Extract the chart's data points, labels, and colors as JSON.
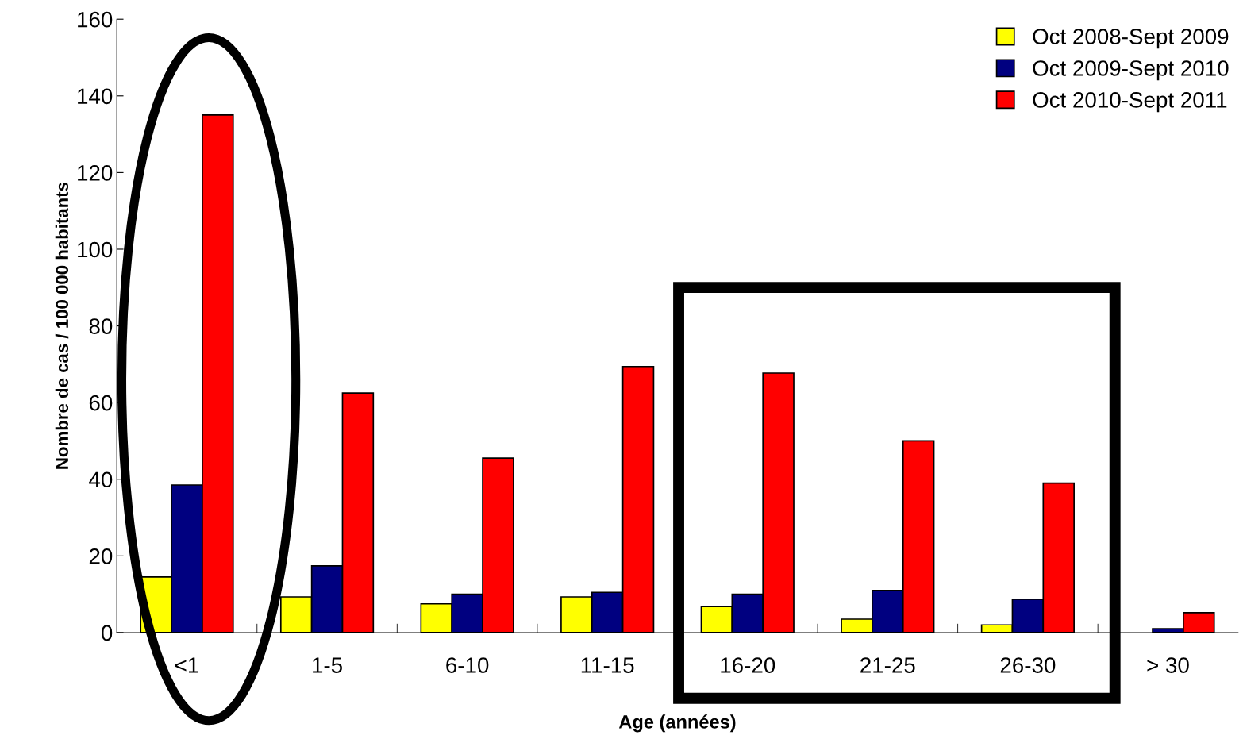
{
  "chart_data": {
    "type": "bar",
    "xlabel": "Age (années)",
    "ylabel": "Nombre de cas / 100 000 habitants",
    "categories": [
      "<1",
      "1-5",
      "6-10",
      "11-15",
      "16-20",
      "21-25",
      "26-30",
      "> 30"
    ],
    "series": [
      {
        "name": "Oct 2008-Sept 2009",
        "color": "#ffff00",
        "values": [
          14.5,
          9.3,
          7.5,
          9.3,
          6.8,
          3.5,
          2,
          null
        ]
      },
      {
        "name": "Oct 2009-Sept 2010",
        "color": "#000080",
        "values": [
          38.5,
          17.4,
          10,
          10.5,
          10,
          11,
          8.7,
          1
        ]
      },
      {
        "name": "Oct 2010-Sept 2011",
        "color": "#ff0000",
        "values": [
          135,
          62.5,
          45.5,
          69.4,
          67.7,
          50,
          39,
          5.2
        ]
      }
    ],
    "ylim": [
      0,
      160
    ],
    "yticks": [
      0,
      20,
      40,
      60,
      80,
      100,
      120,
      140,
      160
    ],
    "grid": false,
    "legend": "top right"
  }
}
